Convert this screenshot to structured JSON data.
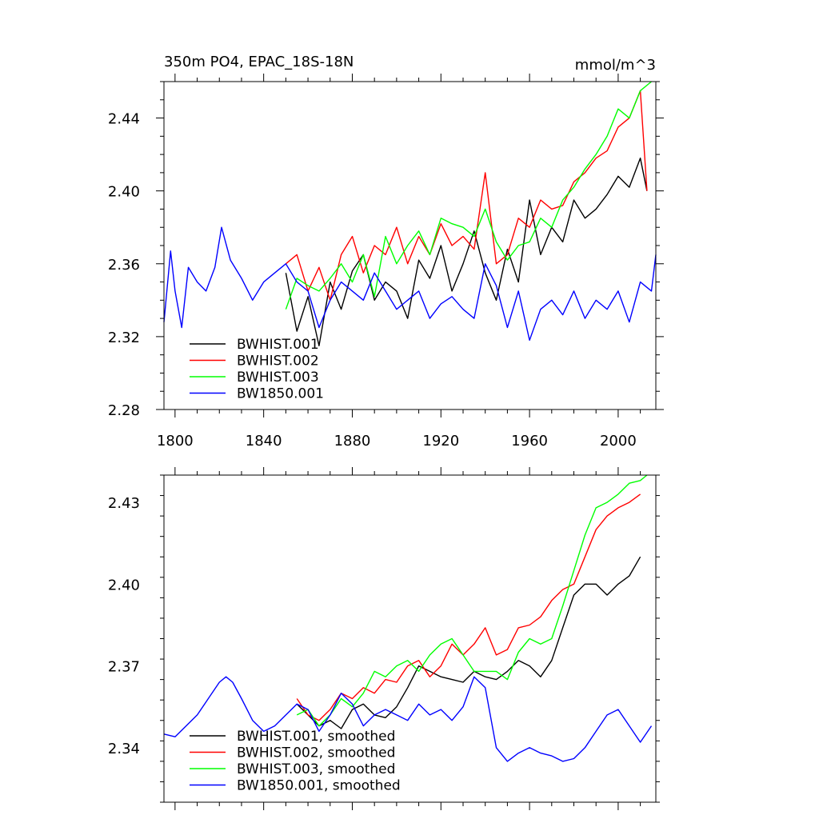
{
  "figure": {
    "title": "350m PO4, EPAC_18S-18N",
    "units": "mmol/m^3"
  },
  "chart_data": [
    {
      "type": "line",
      "title": "350m PO4, EPAC_18S-18N",
      "units": "mmol/m^3",
      "xlabel": "",
      "ylabel": "",
      "xlim": [
        1795,
        2017
      ],
      "ylim": [
        2.28,
        2.46
      ],
      "xticks": [
        1800,
        1840,
        1880,
        1920,
        1960,
        2000
      ],
      "xtick_labels": [
        "1800",
        "1840",
        "1880",
        "1920",
        "1960",
        "2000"
      ],
      "yticks": [
        2.28,
        2.32,
        2.36,
        2.4,
        2.44
      ],
      "ytick_labels": [
        "2.28",
        "2.32",
        "2.36",
        "2.40",
        "2.44"
      ],
      "legend_position": "bottom-left",
      "series": [
        {
          "name": "BWHIST.001",
          "color": "#000000",
          "x": [
            1850,
            1855,
            1860,
            1865,
            1870,
            1875,
            1880,
            1885,
            1890,
            1895,
            1900,
            1905,
            1910,
            1915,
            1920,
            1925,
            1930,
            1935,
            1940,
            1945,
            1950,
            1955,
            1960,
            1965,
            1970,
            1975,
            1980,
            1985,
            1990,
            1995,
            2000,
            2005,
            2010,
            2013
          ],
          "y": [
            2.355,
            2.323,
            2.342,
            2.315,
            2.35,
            2.335,
            2.356,
            2.365,
            2.34,
            2.35,
            2.345,
            2.33,
            2.362,
            2.352,
            2.37,
            2.345,
            2.36,
            2.378,
            2.355,
            2.34,
            2.368,
            2.35,
            2.395,
            2.365,
            2.38,
            2.372,
            2.395,
            2.385,
            2.39,
            2.398,
            2.408,
            2.402,
            2.418,
            2.4
          ]
        },
        {
          "name": "BWHIST.002",
          "color": "#ff0000",
          "x": [
            1850,
            1855,
            1860,
            1865,
            1870,
            1875,
            1880,
            1885,
            1890,
            1895,
            1900,
            1905,
            1910,
            1915,
            1920,
            1925,
            1930,
            1935,
            1940,
            1945,
            1950,
            1955,
            1960,
            1965,
            1970,
            1975,
            1980,
            1985,
            1990,
            1995,
            2000,
            2005,
            2010,
            2013
          ],
          "y": [
            2.36,
            2.365,
            2.345,
            2.358,
            2.34,
            2.365,
            2.375,
            2.355,
            2.37,
            2.365,
            2.38,
            2.36,
            2.375,
            2.365,
            2.382,
            2.37,
            2.375,
            2.368,
            2.41,
            2.36,
            2.365,
            2.385,
            2.38,
            2.395,
            2.39,
            2.392,
            2.405,
            2.41,
            2.418,
            2.422,
            2.435,
            2.44,
            2.455,
            2.4
          ]
        },
        {
          "name": "BWHIST.003",
          "color": "#00ff00",
          "x": [
            1850,
            1855,
            1860,
            1865,
            1870,
            1875,
            1880,
            1885,
            1890,
            1895,
            1900,
            1905,
            1910,
            1915,
            1920,
            1925,
            1930,
            1935,
            1940,
            1945,
            1950,
            1955,
            1960,
            1965,
            1970,
            1975,
            1980,
            1985,
            1990,
            1995,
            2000,
            2005,
            2010,
            2015
          ],
          "y": [
            2.335,
            2.352,
            2.348,
            2.345,
            2.352,
            2.36,
            2.35,
            2.365,
            2.342,
            2.375,
            2.36,
            2.37,
            2.378,
            2.365,
            2.385,
            2.382,
            2.38,
            2.375,
            2.39,
            2.372,
            2.362,
            2.37,
            2.372,
            2.385,
            2.38,
            2.395,
            2.402,
            2.412,
            2.42,
            2.43,
            2.445,
            2.44,
            2.455,
            2.46
          ]
        },
        {
          "name": "BW1850.001",
          "color": "#0000ff",
          "x": [
            1795,
            1798,
            1800,
            1803,
            1806,
            1810,
            1814,
            1818,
            1821,
            1825,
            1830,
            1835,
            1840,
            1845,
            1850,
            1855,
            1860,
            1865,
            1870,
            1875,
            1880,
            1885,
            1890,
            1895,
            1900,
            1905,
            1910,
            1915,
            1920,
            1925,
            1930,
            1935,
            1940,
            1945,
            1950,
            1955,
            1960,
            1965,
            1970,
            1975,
            1980,
            1985,
            1990,
            1995,
            2000,
            2005,
            2010,
            2015,
            2017
          ],
          "y": [
            2.328,
            2.367,
            2.345,
            2.325,
            2.358,
            2.35,
            2.345,
            2.358,
            2.38,
            2.362,
            2.352,
            2.34,
            2.35,
            2.355,
            2.36,
            2.35,
            2.345,
            2.325,
            2.34,
            2.35,
            2.345,
            2.34,
            2.355,
            2.345,
            2.335,
            2.34,
            2.345,
            2.33,
            2.338,
            2.342,
            2.335,
            2.33,
            2.36,
            2.348,
            2.325,
            2.345,
            2.318,
            2.335,
            2.34,
            2.332,
            2.345,
            2.33,
            2.34,
            2.335,
            2.345,
            2.328,
            2.35,
            2.345,
            2.365
          ]
        }
      ]
    },
    {
      "type": "line",
      "title": "",
      "xlabel": "",
      "ylabel": "",
      "xlim": [
        1795,
        2017
      ],
      "ylim": [
        2.32,
        2.44
      ],
      "xticks": [
        1800,
        1840,
        1880,
        1920,
        1960,
        2000
      ],
      "xtick_labels": [],
      "yticks": [
        2.34,
        2.37,
        2.4,
        2.43
      ],
      "ytick_labels": [
        "2.34",
        "2.37",
        "2.40",
        "2.43"
      ],
      "legend_position": "bottom-left",
      "series": [
        {
          "name": "BWHIST.001, smoothed",
          "color": "#000000",
          "x": [
            1855,
            1860,
            1865,
            1870,
            1875,
            1880,
            1885,
            1890,
            1895,
            1900,
            1905,
            1910,
            1915,
            1920,
            1925,
            1930,
            1935,
            1940,
            1945,
            1950,
            1955,
            1960,
            1965,
            1970,
            1975,
            1980,
            1985,
            1990,
            1995,
            2000,
            2005,
            2010
          ],
          "y": [
            2.356,
            2.352,
            2.348,
            2.35,
            2.347,
            2.354,
            2.356,
            2.352,
            2.351,
            2.355,
            2.362,
            2.37,
            2.368,
            2.366,
            2.365,
            2.364,
            2.368,
            2.366,
            2.365,
            2.368,
            2.372,
            2.37,
            2.366,
            2.372,
            2.384,
            2.396,
            2.4,
            2.4,
            2.396,
            2.4,
            2.403,
            2.41
          ]
        },
        {
          "name": "BWHIST.002, smoothed",
          "color": "#ff0000",
          "x": [
            1855,
            1860,
            1865,
            1870,
            1875,
            1880,
            1885,
            1890,
            1895,
            1900,
            1905,
            1910,
            1915,
            1920,
            1925,
            1930,
            1935,
            1940,
            1945,
            1950,
            1955,
            1960,
            1965,
            1970,
            1975,
            1980,
            1985,
            1990,
            1995,
            2000,
            2005,
            2010
          ],
          "y": [
            2.358,
            2.352,
            2.35,
            2.354,
            2.36,
            2.358,
            2.362,
            2.36,
            2.365,
            2.364,
            2.37,
            2.372,
            2.366,
            2.37,
            2.378,
            2.374,
            2.378,
            2.384,
            2.374,
            2.376,
            2.384,
            2.385,
            2.388,
            2.394,
            2.398,
            2.4,
            2.41,
            2.42,
            2.425,
            2.428,
            2.43,
            2.433
          ]
        },
        {
          "name": "BWHIST.003, smoothed",
          "color": "#00ff00",
          "x": [
            1855,
            1860,
            1865,
            1870,
            1875,
            1880,
            1885,
            1890,
            1895,
            1900,
            1905,
            1910,
            1915,
            1920,
            1925,
            1930,
            1935,
            1940,
            1945,
            1950,
            1955,
            1960,
            1965,
            1970,
            1975,
            1980,
            1985,
            1990,
            1995,
            2000,
            2005,
            2010,
            2013
          ],
          "y": [
            2.352,
            2.354,
            2.348,
            2.352,
            2.358,
            2.355,
            2.36,
            2.368,
            2.366,
            2.37,
            2.372,
            2.368,
            2.374,
            2.378,
            2.38,
            2.374,
            2.368,
            2.368,
            2.368,
            2.365,
            2.375,
            2.38,
            2.378,
            2.38,
            2.392,
            2.405,
            2.418,
            2.428,
            2.43,
            2.433,
            2.437,
            2.438,
            2.44
          ]
        },
        {
          "name": "BW1850.001, smoothed",
          "color": "#0000ff",
          "x": [
            1795,
            1800,
            1805,
            1810,
            1815,
            1820,
            1823,
            1826,
            1830,
            1835,
            1840,
            1845,
            1850,
            1855,
            1860,
            1865,
            1870,
            1875,
            1880,
            1885,
            1890,
            1895,
            1900,
            1905,
            1910,
            1915,
            1920,
            1925,
            1930,
            1935,
            1940,
            1945,
            1950,
            1955,
            1960,
            1965,
            1970,
            1975,
            1980,
            1985,
            1990,
            1995,
            2000,
            2005,
            2010,
            2015
          ],
          "y": [
            2.345,
            2.344,
            2.348,
            2.352,
            2.358,
            2.364,
            2.366,
            2.364,
            2.358,
            2.35,
            2.346,
            2.348,
            2.352,
            2.356,
            2.354,
            2.346,
            2.352,
            2.36,
            2.356,
            2.348,
            2.352,
            2.354,
            2.352,
            2.35,
            2.356,
            2.352,
            2.354,
            2.35,
            2.355,
            2.366,
            2.362,
            2.34,
            2.335,
            2.338,
            2.34,
            2.338,
            2.337,
            2.335,
            2.336,
            2.34,
            2.346,
            2.352,
            2.354,
            2.348,
            2.342,
            2.348
          ]
        }
      ]
    }
  ]
}
